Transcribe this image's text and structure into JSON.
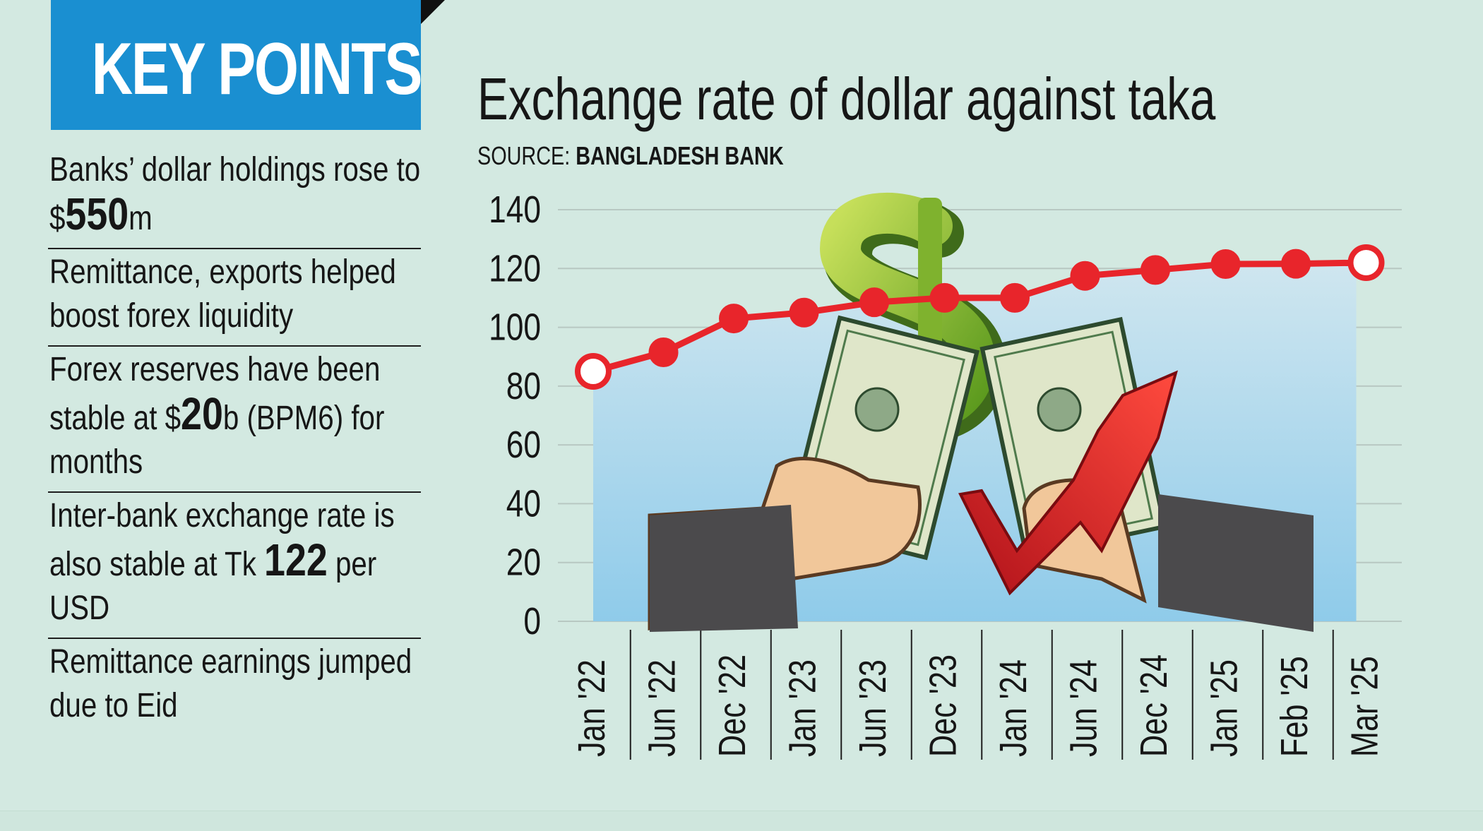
{
  "key_points": {
    "title": "KEY POINTS",
    "items": [
      {
        "pre": "Banks’ dollar holdings rose to $",
        "bold": "550",
        "post": "m"
      },
      {
        "pre": "Remittance, exports helped boost forex liquidity",
        "bold": "",
        "post": ""
      },
      {
        "pre": "Forex reserves have been stable at $",
        "bold": "20",
        "post": "b (BPM6) for months"
      },
      {
        "pre": "Inter-bank exchange rate is also stable at Tk ",
        "bold": "122",
        "post": " per USD"
      },
      {
        "pre": "Remittance earnings jumped due to Eid",
        "bold": "",
        "post": ""
      }
    ]
  },
  "chart_title": "Exchange rate of dollar against taka",
  "source": {
    "label": "SOURCE: ",
    "name": "BANGLADESH BANK"
  },
  "colors": {
    "header_blue": "#1a8fd1",
    "background": "#d3e9e1",
    "line_red": "#e8252b",
    "area_top": "#cfe6ef",
    "area_bottom": "#8fcbea",
    "grid": "#b8c8c2"
  },
  "illustration": {
    "description_icons": [
      "dollar-sign-icon",
      "banknote-icon",
      "hand-icon",
      "red-arrow-up-icon"
    ]
  },
  "chart_data": {
    "type": "line",
    "categories": [
      "Jan '22",
      "Jun '22",
      "Dec '22",
      "Jan '23",
      "Jun '23",
      "Dec '23",
      "Jan '24",
      "Jun '24",
      "Dec '24",
      "Jan '25",
      "Feb '25",
      "Mar '25"
    ],
    "values": [
      85,
      91.5,
      103,
      105,
      108.5,
      110,
      110,
      117.5,
      119.5,
      121.5,
      121.6,
      122
    ],
    "title": "Exchange rate of dollar against taka",
    "xlabel": "",
    "ylabel": "",
    "ylim": [
      0,
      140
    ],
    "yticks": [
      "0",
      "20",
      "40",
      "60",
      "80",
      "100",
      "120",
      "140"
    ],
    "grid": true,
    "legend": "none"
  }
}
